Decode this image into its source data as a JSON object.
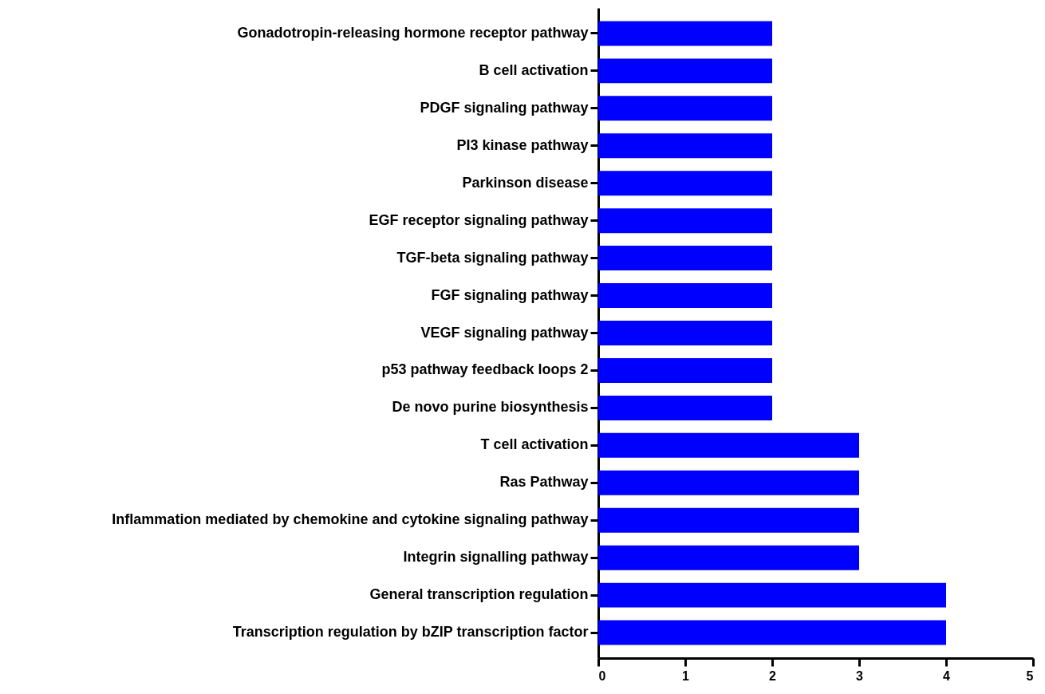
{
  "chart_data": {
    "type": "bar",
    "orientation": "horizontal",
    "categories": [
      "Gonadotropin-releasing hormone receptor pathway",
      "B cell activation",
      "PDGF signaling pathway",
      "PI3 kinase pathway",
      "Parkinson disease",
      "EGF receptor signaling pathway",
      "TGF-beta signaling pathway",
      "FGF signaling pathway",
      "VEGF signaling pathway",
      "p53 pathway feedback loops 2",
      "De novo purine biosynthesis",
      "T cell activation",
      "Ras Pathway",
      "Inflammation mediated by chemokine and cytokine signaling pathway",
      "Integrin signalling pathway",
      "General transcription regulation",
      "Transcription regulation by bZIP transcription factor"
    ],
    "values": [
      2,
      2,
      2,
      2,
      2,
      2,
      2,
      2,
      2,
      2,
      2,
      3,
      3,
      3,
      3,
      4,
      4
    ],
    "color": "#0000ff",
    "xlim": [
      0,
      5
    ],
    "xticks": [
      0,
      1,
      2,
      3,
      4,
      5
    ]
  }
}
